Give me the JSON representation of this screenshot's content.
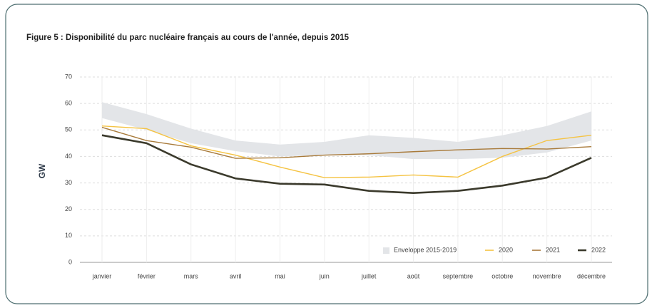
{
  "chart_data": {
    "type": "line",
    "title": "Figure 5 : Disponibilité du parc nucléaire français au cours de l'année, depuis 2015",
    "y_label": "GW",
    "categories": [
      "janvier",
      "février",
      "mars",
      "avril",
      "mai",
      "juin",
      "juillet",
      "août",
      "septembre",
      "octobre",
      "novembre",
      "décembre"
    ],
    "envelope": {
      "name": "Enveloppe 2015-2019",
      "color": "#e3e5e8",
      "low": [
        54.5,
        50,
        45,
        42,
        40,
        40.5,
        40.5,
        39,
        39,
        39.5,
        41.5,
        46
      ],
      "high": [
        60.5,
        56,
        50.5,
        46,
        44.5,
        45.5,
        48,
        47,
        45.5,
        48,
        51.5,
        57
      ]
    },
    "series": [
      {
        "name": "2020",
        "color": "#f5c342",
        "values": [
          51.5,
          50.5,
          44,
          40.5,
          36,
          32,
          32.2,
          33,
          32.2,
          40,
          46,
          48
        ]
      },
      {
        "name": "2021",
        "color": "#a87a3a",
        "values": [
          51,
          46,
          43.5,
          39.3,
          39.5,
          40.5,
          41,
          41.8,
          42.5,
          43,
          42.8,
          43.7
        ]
      },
      {
        "name": "2022",
        "color": "#3b3a2c",
        "values": [
          48,
          45,
          37,
          31.7,
          29.7,
          29.4,
          27,
          26.2,
          27,
          29,
          32,
          39.5
        ]
      }
    ],
    "ylim": [
      0,
      70
    ],
    "yticks": [
      0,
      10,
      20,
      30,
      40,
      50,
      60,
      70
    ],
    "grid": true
  }
}
